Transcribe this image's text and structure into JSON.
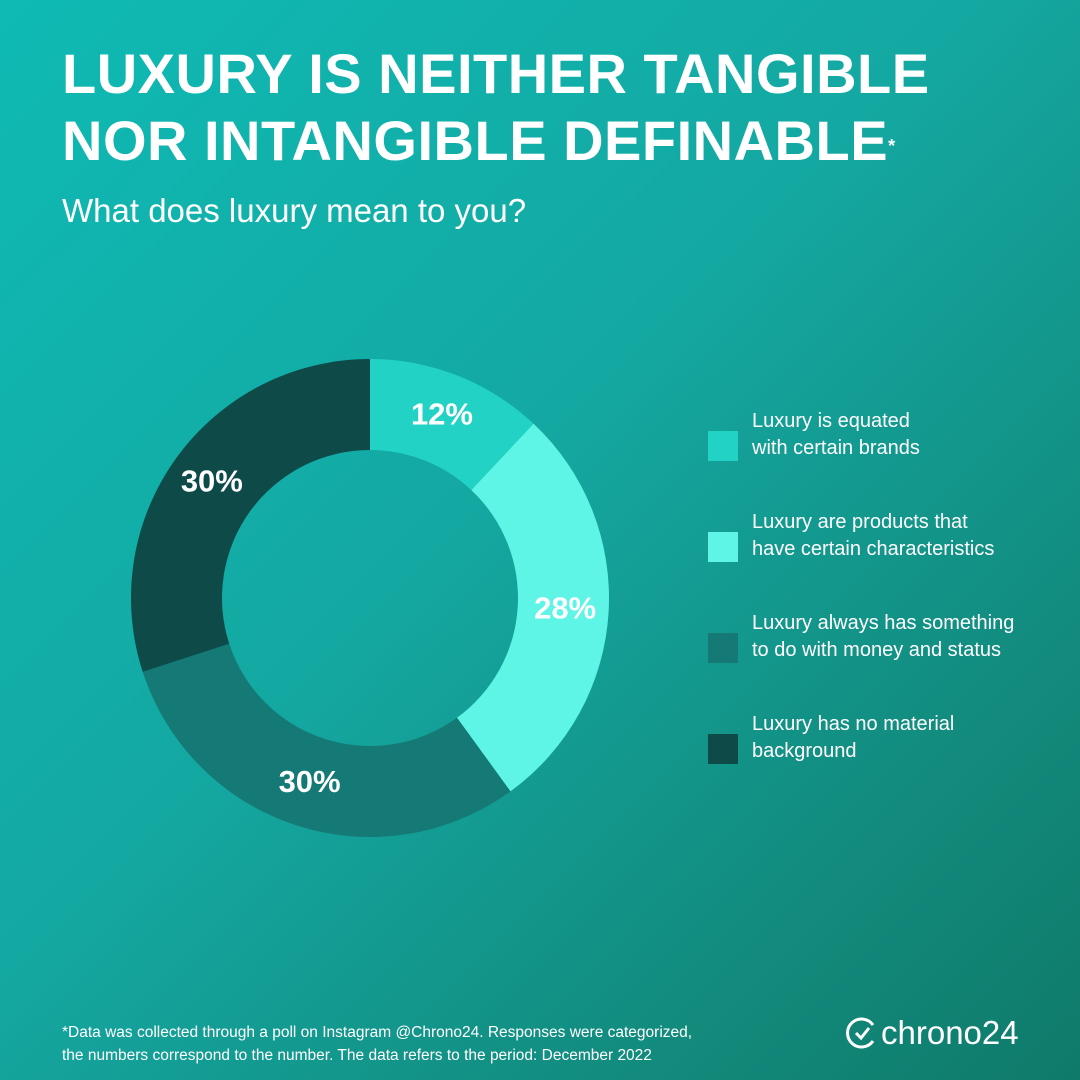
{
  "chart_data": {
    "type": "donut",
    "title": "LUXURY IS NEITHER TANGIBLE\nNOR INTANGIBLE DEFINABLE",
    "title_mark": "*",
    "subtitle": "What does luxury mean to you?",
    "categories": [
      "Luxury is equated\nwith certain brands",
      "Luxury are products that\nhave certain characteristics",
      "Luxury always has something\nto do with money and status",
      "Luxury has no material\n background"
    ],
    "values": [
      12,
      28,
      30,
      30
    ],
    "value_labels": [
      "12%",
      "28%",
      "30%",
      "30%"
    ],
    "colors": [
      "#22d3c5",
      "#5ef5e6",
      "#157a75",
      "#0d4a48"
    ],
    "footnote": "*Data was collected through a poll on Instagram @Chrono24. Responses were categorized,\nthe numbers correspond to the number. The data refers to the period: December 2022",
    "logo": "chrono24"
  }
}
